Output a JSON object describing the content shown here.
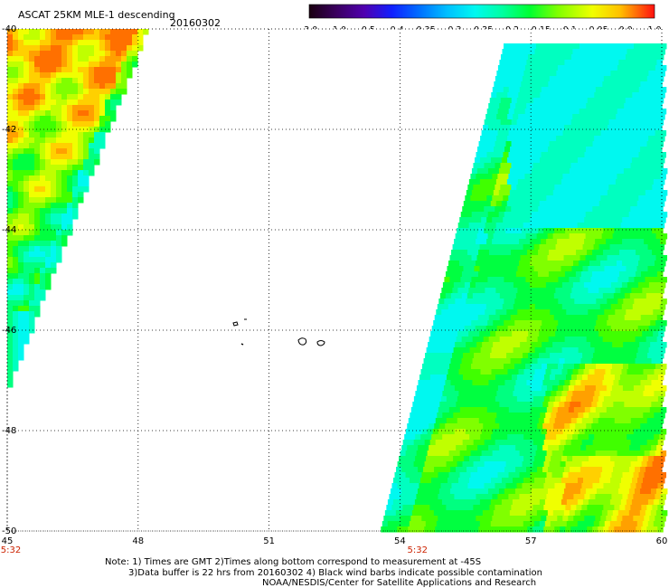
{
  "header": {
    "title": "ASCAT 25KM MLE-1 descending",
    "date": "20160302"
  },
  "colorbar": {
    "labels": [
      "-3.0",
      "-1.0",
      "-0.5",
      "-0.4",
      "-0.35",
      "-0.3",
      "-0.25",
      "-0.2",
      "-0.15",
      "-0.1",
      "-0.05",
      "0.0",
      "1.0"
    ],
    "colors": [
      "#1a0010",
      "#4b0082",
      "#2000ff",
      "#0060ff",
      "#00b4ff",
      "#00f0f0",
      "#00ffb0",
      "#00ff40",
      "#60ff00",
      "#c0ff00",
      "#ffff00",
      "#ffb000",
      "#ff2020"
    ]
  },
  "map": {
    "lon_range": [
      45,
      60
    ],
    "lat_range": [
      -50,
      -40
    ],
    "lon_ticks": [
      "45",
      "48",
      "51",
      "54",
      "57",
      "60"
    ],
    "lat_ticks": [
      "-40",
      "-42",
      "-44",
      "-46",
      "-48",
      "-50"
    ],
    "time_labels": [
      {
        "text": "5:32",
        "lon": 45
      },
      {
        "text": "5:32",
        "lon": 54.4
      }
    ],
    "time_color": "#cc2200"
  },
  "notes": {
    "line1": "Note: 1) Times are GMT 2)Times along bottom correspond to measurement at -45S",
    "line2": "3)Data buffer is 22 hrs from 20160302 4) Black wind barbs indicate possible contamination",
    "line3": "NOAA/NESDIS/Center for Satellite Applications and Research"
  }
}
